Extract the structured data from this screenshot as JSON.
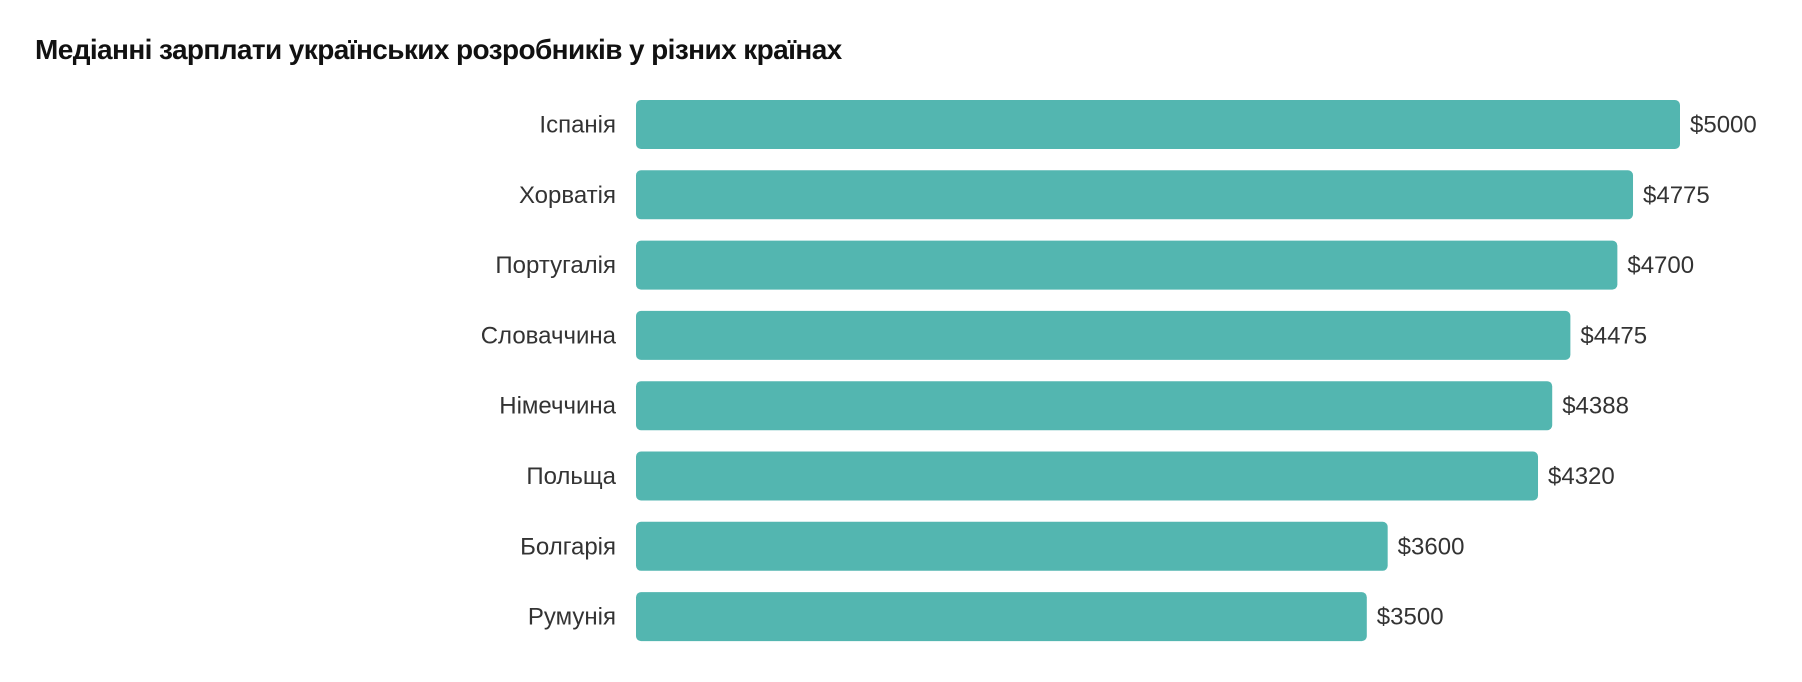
{
  "chart_data": {
    "type": "bar",
    "orientation": "horizontal",
    "title": "Медіанні зарплати українських розробників у різних країнах",
    "categories": [
      "Іспанія",
      "Хорватія",
      "Португалія",
      "Словаччина",
      "Німеччина",
      "Польща",
      "Болгарія",
      "Румунія"
    ],
    "values": [
      5000,
      4775,
      4700,
      4475,
      4388,
      4320,
      3600,
      3500
    ],
    "value_labels": [
      "$5000",
      "$4775",
      "$4700",
      "$4475",
      "$4388",
      "$4320",
      "$3600",
      "$3500"
    ],
    "xlim": [
      0,
      5000
    ],
    "xlabel": "",
    "ylabel": "",
    "grid": false,
    "bar_color": "#53b6b0"
  }
}
